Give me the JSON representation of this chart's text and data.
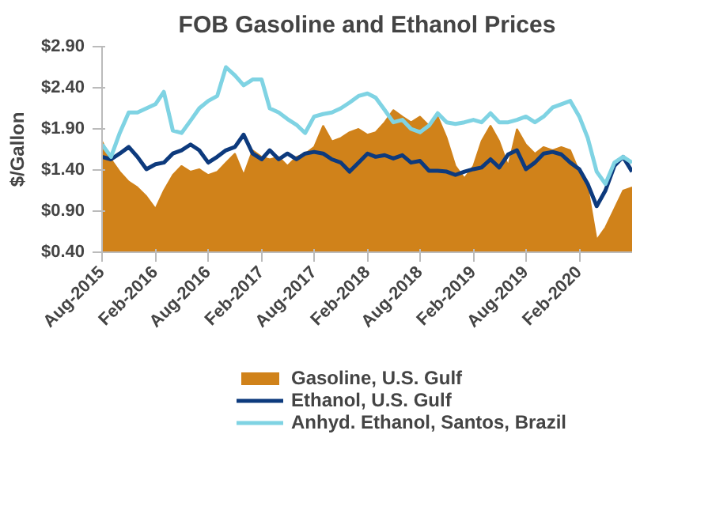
{
  "chart_data": {
    "type": "line",
    "title": "FOB Gasoline and Ethanol Prices",
    "ylabel": "$/Gallon",
    "x": [
      "2015-08",
      "2015-09",
      "2015-10",
      "2015-11",
      "2015-12",
      "2016-01",
      "2016-02",
      "2016-03",
      "2016-04",
      "2016-05",
      "2016-06",
      "2016-07",
      "2016-08",
      "2016-09",
      "2016-10",
      "2016-11",
      "2016-12",
      "2017-01",
      "2017-02",
      "2017-03",
      "2017-04",
      "2017-05",
      "2017-06",
      "2017-07",
      "2017-08",
      "2017-09",
      "2017-10",
      "2017-11",
      "2017-12",
      "2018-01",
      "2018-02",
      "2018-03",
      "2018-04",
      "2018-05",
      "2018-06",
      "2018-07",
      "2018-08",
      "2018-09",
      "2018-10",
      "2018-11",
      "2018-12",
      "2019-01",
      "2019-02",
      "2019-03",
      "2019-04",
      "2019-05",
      "2019-06",
      "2019-07",
      "2019-08",
      "2019-09",
      "2019-10",
      "2019-11",
      "2019-12",
      "2020-01",
      "2020-02",
      "2020-03",
      "2020-04",
      "2020-05",
      "2020-06",
      "2020-07",
      "2020-08"
    ],
    "series": [
      {
        "name": "Gasoline, U.S. Gulf",
        "type": "area",
        "color": "#d0821a",
        "values": [
          1.75,
          1.53,
          1.38,
          1.26,
          1.19,
          1.08,
          0.93,
          1.15,
          1.34,
          1.45,
          1.38,
          1.41,
          1.34,
          1.38,
          1.49,
          1.6,
          1.34,
          1.64,
          1.56,
          1.53,
          1.56,
          1.45,
          1.56,
          1.6,
          1.68,
          1.94,
          1.75,
          1.79,
          1.86,
          1.9,
          1.83,
          1.86,
          1.98,
          2.13,
          2.05,
          1.98,
          2.05,
          1.94,
          2.05,
          1.79,
          1.45,
          1.3,
          1.45,
          1.75,
          1.94,
          1.75,
          1.45,
          1.9,
          1.71,
          1.6,
          1.68,
          1.64,
          1.68,
          1.64,
          1.38,
          1.19,
          0.55,
          0.7,
          0.93,
          1.15,
          1.19
        ]
      },
      {
        "name": "Ethanol, U.S. Gulf",
        "type": "line",
        "color": "#0d3a7d",
        "values": [
          1.56,
          1.53,
          1.6,
          1.68,
          1.56,
          1.41,
          1.47,
          1.49,
          1.6,
          1.64,
          1.71,
          1.64,
          1.49,
          1.56,
          1.64,
          1.68,
          1.83,
          1.6,
          1.53,
          1.64,
          1.53,
          1.6,
          1.53,
          1.6,
          1.62,
          1.6,
          1.53,
          1.49,
          1.38,
          1.49,
          1.6,
          1.56,
          1.58,
          1.54,
          1.58,
          1.49,
          1.51,
          1.39,
          1.39,
          1.38,
          1.34,
          1.38,
          1.41,
          1.43,
          1.53,
          1.43,
          1.59,
          1.64,
          1.41,
          1.49,
          1.6,
          1.62,
          1.59,
          1.49,
          1.41,
          1.23,
          0.96,
          1.15,
          1.45,
          1.56,
          1.38
        ]
      },
      {
        "name": "Anhyd. Ethanol, Santos, Brazil",
        "type": "line",
        "color": "#7fd3e3",
        "values": [
          1.71,
          1.56,
          1.85,
          2.1,
          2.1,
          2.15,
          2.2,
          2.35,
          1.88,
          1.85,
          2.0,
          2.15,
          2.24,
          2.3,
          2.65,
          2.55,
          2.43,
          2.5,
          2.5,
          2.15,
          2.1,
          2.02,
          1.95,
          1.85,
          2.05,
          2.08,
          2.1,
          2.15,
          2.22,
          2.3,
          2.33,
          2.28,
          2.13,
          1.98,
          2.01,
          1.9,
          1.86,
          1.94,
          2.09,
          1.98,
          1.96,
          1.98,
          2.01,
          1.98,
          2.09,
          1.98,
          1.98,
          2.01,
          2.05,
          1.98,
          2.05,
          2.16,
          2.2,
          2.24,
          2.05,
          1.79,
          1.38,
          1.23,
          1.49,
          1.56,
          1.49
        ]
      }
    ],
    "xlim": [
      "2015-08",
      "2020-08"
    ],
    "xticks": [
      {
        "value": "2015-08",
        "label": "Aug-2015"
      },
      {
        "value": "2016-02",
        "label": "Feb-2016"
      },
      {
        "value": "2016-08",
        "label": "Aug-2016"
      },
      {
        "value": "2017-02",
        "label": "Feb-2017"
      },
      {
        "value": "2017-08",
        "label": "Aug-2017"
      },
      {
        "value": "2018-02",
        "label": "Feb-2018"
      },
      {
        "value": "2018-08",
        "label": "Aug-2018"
      },
      {
        "value": "2019-02",
        "label": "Feb-2019"
      },
      {
        "value": "2019-08",
        "label": "Aug-2019"
      },
      {
        "value": "2020-02",
        "label": "Feb-2020"
      }
    ],
    "ylim": [
      0.4,
      2.9
    ],
    "yticks": [
      {
        "value": 0.4,
        "label": "$0.40"
      },
      {
        "value": 0.9,
        "label": "$0.90"
      },
      {
        "value": 1.4,
        "label": "$1.40"
      },
      {
        "value": 1.9,
        "label": "$1.90"
      },
      {
        "value": 2.4,
        "label": "$2.40"
      },
      {
        "value": 2.9,
        "label": "$2.90"
      }
    ],
    "legend": "bottom"
  }
}
